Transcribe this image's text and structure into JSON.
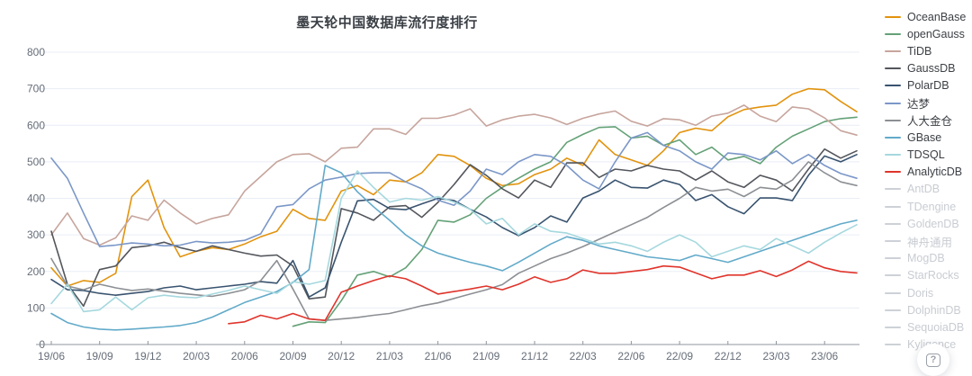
{
  "title": "墨天轮中国数据库流行度排行",
  "help_button": {
    "glyph": "?",
    "icon": "help-shortcut-icon"
  },
  "chart_data": {
    "type": "line",
    "title": "墨天轮中国数据库流行度排行",
    "xlabel": "",
    "ylabel": "",
    "ylim": [
      0,
      800
    ],
    "y_ticks": [
      0,
      100,
      200,
      300,
      400,
      500,
      600,
      700,
      800
    ],
    "grid": true,
    "legend_position": "right",
    "points_count": 51,
    "x_start": "19/06",
    "x_label_every": 3,
    "x_labels": [
      "19/06",
      "19/09",
      "19/12",
      "20/03",
      "20/06",
      "20/09",
      "20/12",
      "21/03",
      "21/06",
      "21/09",
      "21/12",
      "22/03",
      "22/06",
      "22/09",
      "22/12",
      "23/03",
      "23/06"
    ],
    "axis_color": "#8f959e",
    "grid_color": "#e9eef6",
    "tick_label_color": "#666d78",
    "disabled_color": "#cdd1d7",
    "series": [
      {
        "name": "OceanBase",
        "color": "#E2930D",
        "enabled": true,
        "values": [
          210,
          160,
          175,
          170,
          195,
          405,
          450,
          320,
          240,
          255,
          265,
          260,
          275,
          295,
          310,
          370,
          345,
          340,
          420,
          435,
          410,
          450,
          445,
          470,
          520,
          515,
          490,
          455,
          435,
          440,
          465,
          480,
          510,
          490,
          560,
          520,
          505,
          490,
          530,
          580,
          592,
          585,
          623,
          643,
          650,
          655,
          685,
          700,
          697,
          665,
          637
        ]
      },
      {
        "name": "openGauss",
        "color": "#64A177",
        "enabled": true,
        "values": [
          null,
          null,
          null,
          null,
          null,
          null,
          null,
          null,
          null,
          null,
          null,
          null,
          null,
          null,
          null,
          50,
          62,
          60,
          120,
          190,
          200,
          185,
          210,
          260,
          340,
          335,
          355,
          400,
          430,
          455,
          480,
          500,
          553,
          575,
          594,
          596,
          565,
          570,
          545,
          560,
          520,
          540,
          505,
          515,
          495,
          540,
          570,
          590,
          610,
          618,
          622
        ]
      },
      {
        "name": "TiDB",
        "color": "#C7A59D",
        "enabled": true,
        "values": [
          300,
          360,
          290,
          272,
          292,
          352,
          340,
          395,
          360,
          330,
          345,
          355,
          420,
          460,
          500,
          520,
          522,
          500,
          537,
          540,
          590,
          590,
          575,
          619,
          619,
          628,
          645,
          598,
          615,
          625,
          630,
          620,
          602,
          619,
          631,
          639,
          611,
          598,
          618,
          615,
          600,
          625,
          633,
          655,
          625,
          610,
          650,
          645,
          620,
          585,
          573
        ]
      },
      {
        "name": "GaussDB",
        "color": "#53565C",
        "enabled": true,
        "values": [
          310,
          165,
          105,
          205,
          215,
          265,
          270,
          280,
          265,
          255,
          270,
          260,
          250,
          242,
          245,
          215,
          125,
          130,
          372,
          360,
          340,
          377,
          380,
          348,
          389,
          438,
          492,
          463,
          426,
          401,
          450,
          430,
          497,
          497,
          457,
          480,
          475,
          490,
          480,
          475,
          450,
          475,
          445,
          430,
          463,
          450,
          420,
          480,
          535,
          510,
          530
        ]
      },
      {
        "name": "PolarDB",
        "color": "#39536F",
        "enabled": true,
        "values": [
          178,
          150,
          148,
          140,
          135,
          140,
          145,
          155,
          160,
          150,
          155,
          160,
          165,
          172,
          168,
          230,
          130,
          155,
          280,
          393,
          397,
          372,
          369,
          385,
          400,
          394,
          370,
          349,
          320,
          298,
          320,
          352,
          335,
          401,
          420,
          450,
          430,
          428,
          450,
          438,
          394,
          410,
          377,
          358,
          401,
          401,
          394,
          463,
          516,
          500,
          520
        ]
      },
      {
        "name": "达梦",
        "color": "#7B97C8",
        "enabled": true,
        "values": [
          510,
          455,
          360,
          268,
          272,
          278,
          275,
          270,
          272,
          282,
          278,
          280,
          285,
          303,
          377,
          383,
          426,
          450,
          458,
          468,
          470,
          470,
          445,
          426,
          395,
          381,
          420,
          480,
          465,
          500,
          520,
          515,
          490,
          450,
          426,
          500,
          565,
          580,
          545,
          530,
          500,
          480,
          524,
          520,
          505,
          530,
          495,
          520,
          490,
          468,
          455
        ]
      },
      {
        "name": "人大金仓",
        "color": "#8C8F93",
        "enabled": true,
        "values": [
          235,
          160,
          150,
          165,
          155,
          148,
          152,
          146,
          140,
          136,
          132,
          140,
          150,
          175,
          230,
          152,
          70,
          66,
          70,
          74,
          80,
          85,
          95,
          106,
          114,
          126,
          138,
          150,
          164,
          195,
          215,
          235,
          250,
          268,
          288,
          308,
          328,
          348,
          375,
          400,
          430,
          420,
          425,
          405,
          430,
          425,
          450,
          500,
          470,
          445,
          435
        ]
      },
      {
        "name": "GBase",
        "color": "#62AAC9",
        "enabled": true,
        "values": [
          85,
          60,
          48,
          42,
          40,
          42,
          45,
          48,
          52,
          60,
          75,
          95,
          115,
          130,
          145,
          170,
          205,
          490,
          470,
          418,
          377,
          340,
          300,
          270,
          250,
          237,
          225,
          215,
          202,
          225,
          250,
          275,
          295,
          285,
          270,
          260,
          250,
          240,
          235,
          230,
          245,
          235,
          225,
          240,
          255,
          270,
          285,
          300,
          315,
          330,
          340
        ]
      },
      {
        "name": "TDSQL",
        "color": "#A5D8DE",
        "enabled": true,
        "values": [
          112,
          165,
          90,
          95,
          130,
          95,
          128,
          135,
          130,
          128,
          138,
          148,
          160,
          150,
          140,
          172,
          165,
          175,
          400,
          475,
          430,
          390,
          400,
          395,
          405,
          390,
          370,
          330,
          345,
          300,
          330,
          310,
          305,
          290,
          275,
          280,
          270,
          255,
          280,
          300,
          280,
          240,
          255,
          270,
          260,
          290,
          270,
          250,
          280,
          305,
          328
        ]
      },
      {
        "name": "AnalyticDB",
        "color": "#E0342B",
        "enabled": true,
        "values": [
          null,
          null,
          null,
          null,
          null,
          null,
          null,
          null,
          null,
          null,
          null,
          57,
          62,
          80,
          70,
          85,
          70,
          66,
          143,
          160,
          175,
          188,
          180,
          160,
          138,
          145,
          152,
          160,
          150,
          165,
          185,
          170,
          180,
          204,
          195,
          195,
          200,
          205,
          215,
          212,
          196,
          180,
          190,
          190,
          202,
          186,
          204,
          228,
          210,
          200,
          196
        ]
      },
      {
        "name": "AntDB",
        "color": "#cdd1d7",
        "enabled": false,
        "values": []
      },
      {
        "name": "TDengine",
        "color": "#cdd1d7",
        "enabled": false,
        "values": []
      },
      {
        "name": "GoldenDB",
        "color": "#cdd1d7",
        "enabled": false,
        "values": []
      },
      {
        "name": "神舟通用",
        "color": "#cdd1d7",
        "enabled": false,
        "values": []
      },
      {
        "name": "MogDB",
        "color": "#cdd1d7",
        "enabled": false,
        "values": []
      },
      {
        "name": "StarRocks",
        "color": "#cdd1d7",
        "enabled": false,
        "values": []
      },
      {
        "name": "Doris",
        "color": "#cdd1d7",
        "enabled": false,
        "values": []
      },
      {
        "name": "DolphinDB",
        "color": "#cdd1d7",
        "enabled": false,
        "values": []
      },
      {
        "name": "SequoiaDB",
        "color": "#cdd1d7",
        "enabled": false,
        "values": []
      },
      {
        "name": "Kyligence",
        "color": "#cdd1d7",
        "enabled": false,
        "values": []
      }
    ]
  }
}
